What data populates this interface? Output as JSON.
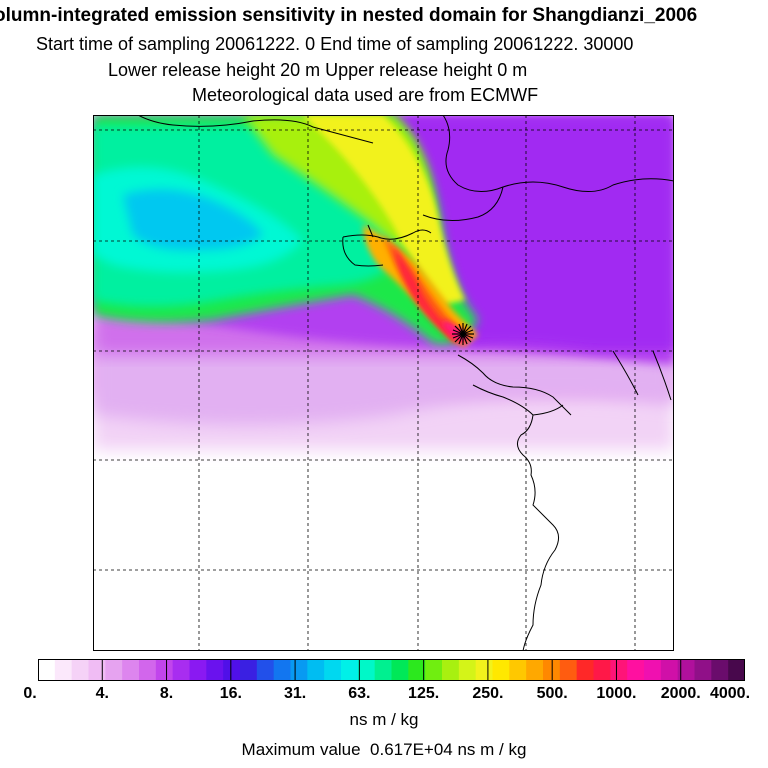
{
  "title": {
    "line1": "olumn-integrated emission sensitivity in nested domain for Shangdianzi_2006",
    "line2": "Start time of sampling 20061222.     0     End time of sampling 20061222. 30000",
    "line3": "Lower release height   20 m           Upper release height    0 m",
    "line4": "Meteorological data used are from ECMWF"
  },
  "map": {
    "receptor_name": "Shangdianzi",
    "receptor_marker": "star-marker-icon",
    "grid_lines": "dashed"
  },
  "colorbar": {
    "labels": [
      "0.",
      "4.",
      "8.",
      "16.",
      "31.",
      "63.",
      "125.",
      "250.",
      "500.",
      "1000.",
      "2000.",
      "4000."
    ],
    "colors": [
      "#ffffff",
      "#fbe8fb",
      "#f5d2f7",
      "#f0bcf4",
      "#e6a3f0",
      "#dd85ee",
      "#d266ec",
      "#c145ec",
      "#a82df0",
      "#8a19f2",
      "#6a12ee",
      "#5010e8",
      "#3a20e2",
      "#2250ea",
      "#1276f0",
      "#089af2",
      "#00bdf2",
      "#00d8f0",
      "#00f0e8",
      "#00f8c8",
      "#00f090",
      "#00e858",
      "#2ce81e",
      "#70ee10",
      "#a8f010",
      "#d4f418",
      "#f2f21c",
      "#ffe800",
      "#ffc800",
      "#ffa800",
      "#ff8800",
      "#ff5c10",
      "#ff2828",
      "#ff1848",
      "#ff1478",
      "#ff10a0",
      "#f010b0",
      "#d010a8",
      "#b0109c",
      "#901088",
      "#6a0c6c",
      "#48084c"
    ],
    "unit": "ns m / kg"
  },
  "footer": {
    "max_value": "Maximum value  0.617E+04 ns m / kg"
  }
}
